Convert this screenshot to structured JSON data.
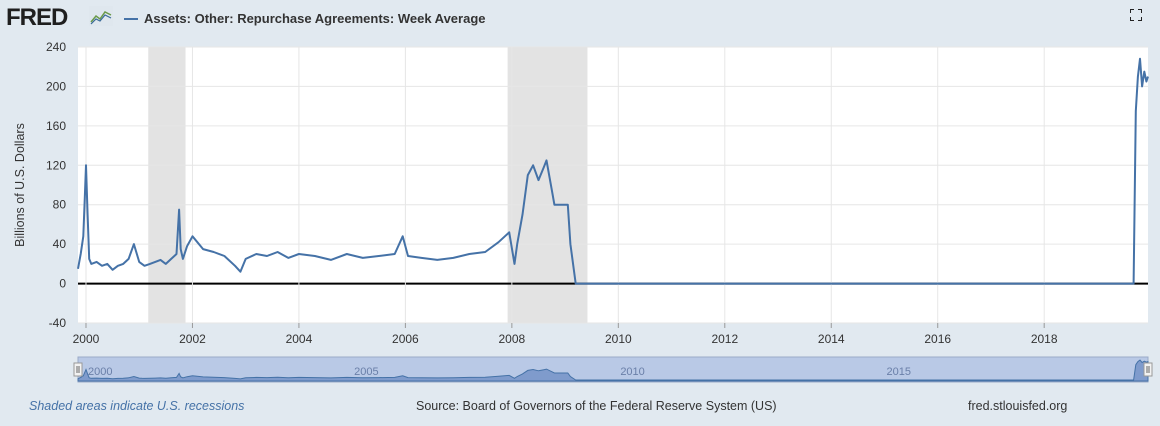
{
  "header": {
    "logo": "FRED",
    "legend_label": "Assets: Other: Repurchase Agreements: Week Average",
    "series_color": "#4572a7"
  },
  "footer": {
    "recession_note": "Shaded areas indicate U.S. recessions",
    "source": "Source: Board of Governors of the Federal Reserve System (US)",
    "site": "fred.stlouisfed.org"
  },
  "navigator": {
    "labels": [
      "2000",
      "2005",
      "2010",
      "2015"
    ]
  },
  "chart_data": {
    "type": "line",
    "title": "",
    "ylabel": "Billions of U.S. Dollars",
    "xlabel": "",
    "xlim": [
      1999.85,
      2019.95
    ],
    "ylim": [
      -40,
      240
    ],
    "yticks": [
      240,
      200,
      160,
      120,
      80,
      40,
      0,
      -40
    ],
    "xticks": [
      2000,
      2002,
      2004,
      2006,
      2008,
      2010,
      2012,
      2014,
      2016,
      2018
    ],
    "grid": true,
    "recessions": [
      [
        2001.17,
        2001.87
      ],
      [
        2007.92,
        2009.42
      ]
    ],
    "series": [
      {
        "name": "Assets: Other: Repurchase Agreements: Week Average",
        "x": [
          1999.85,
          1999.9,
          1999.95,
          1999.98,
          2000.0,
          2000.03,
          2000.06,
          2000.1,
          2000.2,
          2000.3,
          2000.4,
          2000.5,
          2000.6,
          2000.7,
          2000.8,
          2000.9,
          2001.0,
          2001.05,
          2001.1,
          2001.2,
          2001.3,
          2001.4,
          2001.5,
          2001.6,
          2001.7,
          2001.75,
          2001.78,
          2001.82,
          2001.9,
          2002.0,
          2002.2,
          2002.4,
          2002.6,
          2002.8,
          2002.9,
          2003.0,
          2003.2,
          2003.4,
          2003.6,
          2003.8,
          2004.0,
          2004.3,
          2004.6,
          2004.9,
          2005.2,
          2005.5,
          2005.8,
          2005.95,
          2006.05,
          2006.3,
          2006.6,
          2006.9,
          2007.2,
          2007.5,
          2007.75,
          2007.95,
          2008.05,
          2008.1,
          2008.2,
          2008.3,
          2008.4,
          2008.5,
          2008.6,
          2008.65,
          2008.75,
          2008.8,
          2008.9,
          2009.0,
          2009.05,
          2009.1,
          2009.2,
          2009.5,
          2010.0,
          2012.0,
          2014.0,
          2016.0,
          2018.0,
          2019.0,
          2019.6,
          2019.68,
          2019.72,
          2019.76,
          2019.8,
          2019.84,
          2019.88,
          2019.92,
          2019.95
        ],
        "values": [
          15,
          30,
          48,
          90,
          120,
          70,
          25,
          20,
          22,
          18,
          20,
          14,
          18,
          20,
          25,
          40,
          22,
          20,
          18,
          20,
          22,
          24,
          20,
          25,
          30,
          75,
          35,
          25,
          38,
          48,
          35,
          32,
          28,
          18,
          12,
          25,
          30,
          28,
          32,
          26,
          30,
          28,
          24,
          30,
          26,
          28,
          30,
          48,
          28,
          26,
          24,
          26,
          30,
          32,
          42,
          52,
          20,
          40,
          70,
          110,
          120,
          105,
          118,
          125,
          95,
          80,
          80,
          80,
          80,
          40,
          0,
          0,
          0,
          0,
          0,
          0,
          0,
          0,
          0,
          0,
          175,
          210,
          228,
          200,
          215,
          205,
          210
        ]
      }
    ]
  }
}
